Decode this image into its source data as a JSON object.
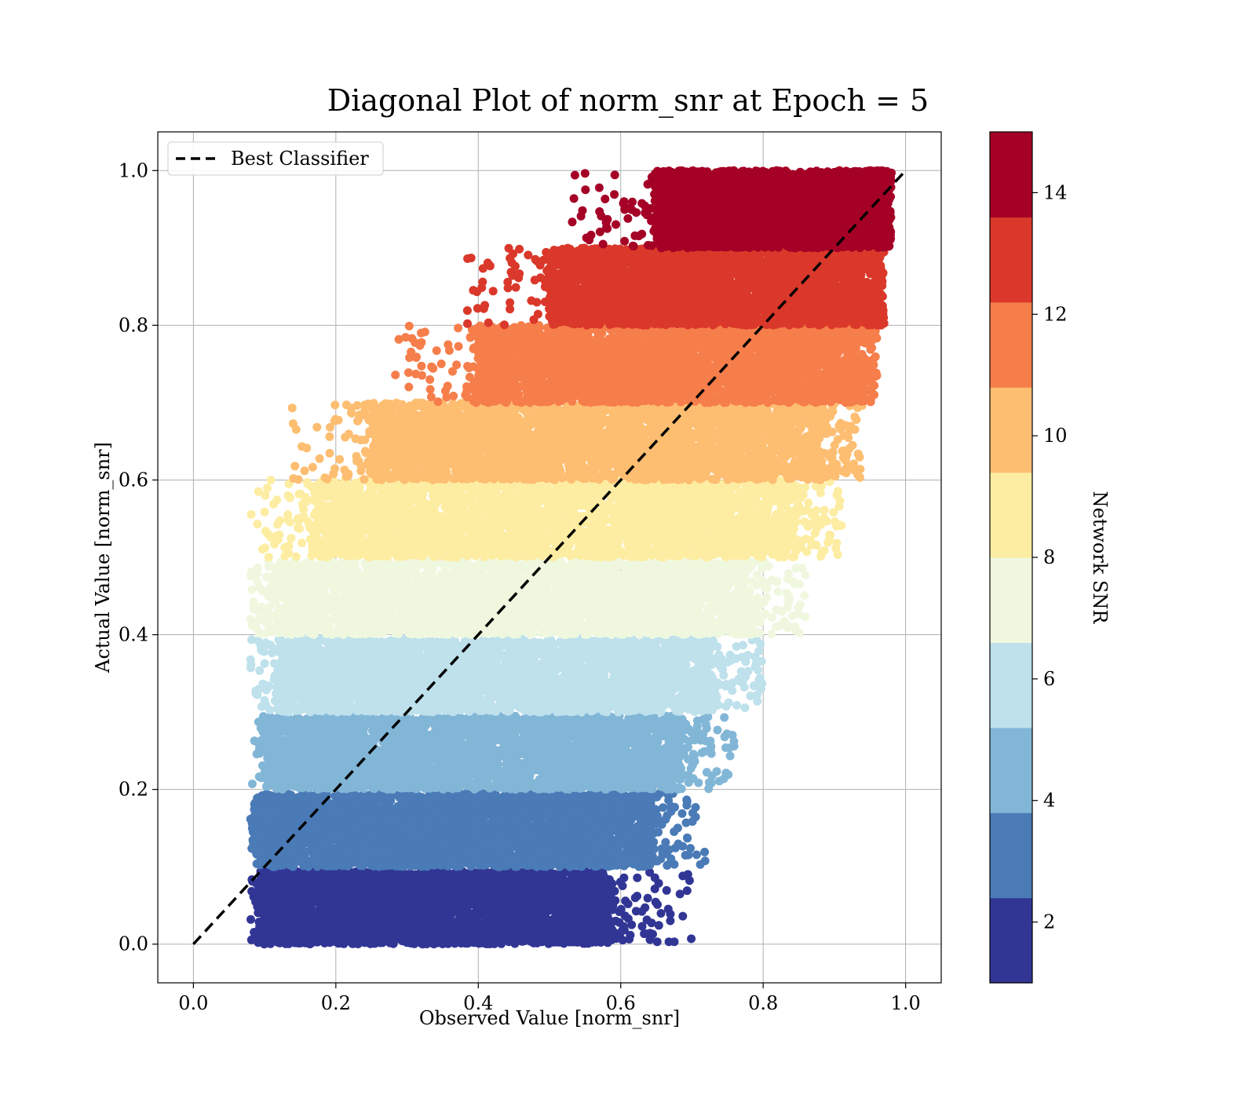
{
  "chart_data": {
    "type": "scatter",
    "title": "Diagonal Plot of norm_snr at Epoch = 5",
    "xlabel": "Observed Value [norm_snr]",
    "ylabel": "Actual Value [norm_snr]",
    "xlim": [
      -0.05,
      1.05
    ],
    "ylim": [
      -0.05,
      1.05
    ],
    "x_ticks": [
      "0.0",
      "0.2",
      "0.4",
      "0.6",
      "0.8",
      "1.0"
    ],
    "y_ticks": [
      "0.0",
      "0.2",
      "0.4",
      "0.6",
      "0.8",
      "1.0"
    ],
    "x_tick_values": [
      0,
      0.2,
      0.4,
      0.6,
      0.8,
      1.0
    ],
    "y_tick_values": [
      0,
      0.2,
      0.4,
      0.6,
      0.8,
      1.0
    ],
    "grid": true,
    "legend": {
      "position": "top-left",
      "entries": [
        {
          "label": "Best Classifier",
          "style": "dashed",
          "color": "#000000"
        }
      ]
    },
    "reference_line": {
      "label": "Best Classifier",
      "x": [
        0,
        1
      ],
      "y": [
        0,
        1
      ]
    },
    "colorbar": {
      "label": "Network SNR",
      "range": [
        1,
        15
      ],
      "tick_labels": [
        "2",
        "4",
        "6",
        "8",
        "10",
        "12",
        "14"
      ],
      "tick_values": [
        2,
        4,
        6,
        8,
        10,
        12,
        14
      ],
      "colors": [
        "#313695",
        "#4a7bb7",
        "#82b6d7",
        "#bee1ec",
        "#eff8df",
        "#fdeda2",
        "#fdbe72",
        "#f67e4b",
        "#da382a",
        "#a50026"
      ]
    },
    "bands": [
      {
        "snr": 1.7,
        "y_range": [
          0.0,
          0.095
        ],
        "x_core": [
          0.1,
          0.58
        ],
        "x_tail": 0.7,
        "color": "#313695"
      },
      {
        "snr": 3.1,
        "y_range": [
          0.1,
          0.195
        ],
        "x_core": [
          0.1,
          0.64
        ],
        "x_tail": 0.72,
        "color": "#4a7bb7"
      },
      {
        "snr": 4.5,
        "y_range": [
          0.2,
          0.295
        ],
        "x_core": [
          0.11,
          0.68
        ],
        "x_tail": 0.76,
        "color": "#82b6d7"
      },
      {
        "snr": 5.9,
        "y_range": [
          0.3,
          0.395
        ],
        "x_core": [
          0.12,
          0.72
        ],
        "x_tail": 0.8,
        "color": "#bee1ec"
      },
      {
        "snr": 7.3,
        "y_range": [
          0.4,
          0.495
        ],
        "x_core": [
          0.12,
          0.78
        ],
        "x_tail": 0.86,
        "color": "#eff8df"
      },
      {
        "snr": 8.7,
        "y_range": [
          0.5,
          0.6
        ],
        "x_core": [
          0.17,
          0.84
        ],
        "x_tail": 0.91,
        "color": "#fdeda2"
      },
      {
        "snr": 10.1,
        "y_range": [
          0.6,
          0.7
        ],
        "x_core": [
          0.25,
          0.88
        ],
        "x_tail": 0.94,
        "color": "#fdbe72"
      },
      {
        "snr": 11.5,
        "y_range": [
          0.7,
          0.8
        ],
        "x_core": [
          0.4,
          0.93
        ],
        "x_tail": 0.96,
        "color": "#f67e4b"
      },
      {
        "snr": 12.9,
        "y_range": [
          0.8,
          0.9
        ],
        "x_core": [
          0.5,
          0.96
        ],
        "x_tail": 0.97,
        "color": "#da382a"
      },
      {
        "snr": 14.3,
        "y_range": [
          0.9,
          1.0
        ],
        "x_core": [
          0.65,
          0.97
        ],
        "x_tail": 0.97,
        "color": "#a50026"
      }
    ]
  }
}
